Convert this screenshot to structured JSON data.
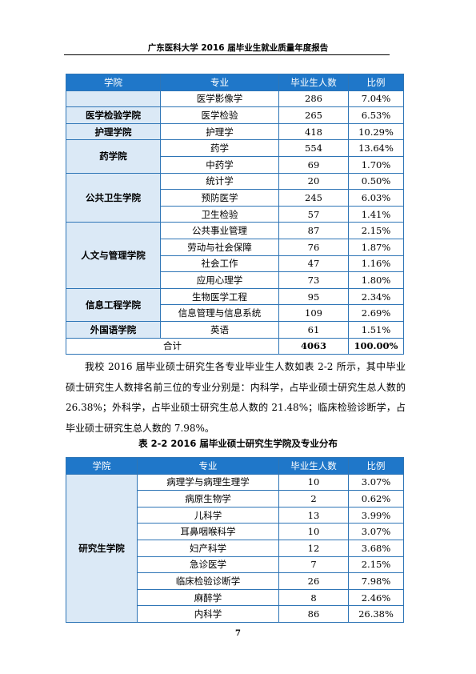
{
  "header": {
    "title": "广东医科大学 2016 届毕业生就业质量年度报告"
  },
  "table1": {
    "headers": [
      "学院",
      "专业",
      "毕业生人数",
      "比例"
    ],
    "rows": [
      {
        "major": "医学影像学",
        "count": "286",
        "ratio": "7.04%"
      },
      {
        "college": "医学检验学院",
        "major": "医学检验",
        "count": "265",
        "ratio": "6.53%"
      },
      {
        "college": "护理学院",
        "major": "护理学",
        "count": "418",
        "ratio": "10.29%"
      },
      {
        "college": "药学院",
        "major": "药学",
        "count": "554",
        "ratio": "13.64%"
      },
      {
        "major": "中药学",
        "count": "69",
        "ratio": "1.70%"
      },
      {
        "college": "公共卫生学院",
        "major": "统计学",
        "count": "20",
        "ratio": "0.50%"
      },
      {
        "major": "预防医学",
        "count": "245",
        "ratio": "6.03%"
      },
      {
        "major": "卫生检验",
        "count": "57",
        "ratio": "1.41%"
      },
      {
        "college": "人文与管理学院",
        "major": "公共事业管理",
        "count": "87",
        "ratio": "2.15%"
      },
      {
        "major": "劳动与社会保障",
        "count": "76",
        "ratio": "1.87%"
      },
      {
        "major": "社会工作",
        "count": "47",
        "ratio": "1.16%"
      },
      {
        "major": "应用心理学",
        "count": "73",
        "ratio": "1.80%"
      },
      {
        "college": "信息工程学院",
        "major": "生物医学工程",
        "count": "95",
        "ratio": "2.34%"
      },
      {
        "major": "信息管理与信息系统",
        "count": "109",
        "ratio": "2.69%"
      },
      {
        "college": "外国语学院",
        "major": "英语",
        "count": "61",
        "ratio": "1.51%"
      }
    ],
    "total": {
      "label": "合计",
      "count": "4063",
      "ratio": "100.00%"
    }
  },
  "paragraph": "我校 2016 届毕业硕士研究生各专业毕业生人数如表 2-2 所示，其中毕业硕士研究生人数排名前三位的专业分别是：内科学，占毕业硕士研究生总人数的 26.38%；外科学，占毕业硕士研究生总人数的 21.48%；临床检验诊断学，占毕业硕士研究生总人数的 7.98%。",
  "table2": {
    "caption": "表 2-2  2016 届毕业硕士研究生学院及专业分布",
    "headers": [
      "学院",
      "专业",
      "毕业生人数",
      "比例"
    ],
    "college": "研究生学院",
    "rows": [
      {
        "major": "病理学与病理生理学",
        "count": "10",
        "ratio": "3.07%"
      },
      {
        "major": "病原生物学",
        "count": "2",
        "ratio": "0.62%"
      },
      {
        "major": "儿科学",
        "count": "13",
        "ratio": "3.99%"
      },
      {
        "major": "耳鼻咽喉科学",
        "count": "10",
        "ratio": "3.07%"
      },
      {
        "major": "妇产科学",
        "count": "12",
        "ratio": "3.68%"
      },
      {
        "major": "急诊医学",
        "count": "7",
        "ratio": "2.15%"
      },
      {
        "major": "临床检验诊断学",
        "count": "26",
        "ratio": "7.98%"
      },
      {
        "major": "麻醉学",
        "count": "8",
        "ratio": "2.46%"
      },
      {
        "major": "内科学",
        "count": "86",
        "ratio": "26.38%"
      }
    ]
  },
  "page_number": "7"
}
